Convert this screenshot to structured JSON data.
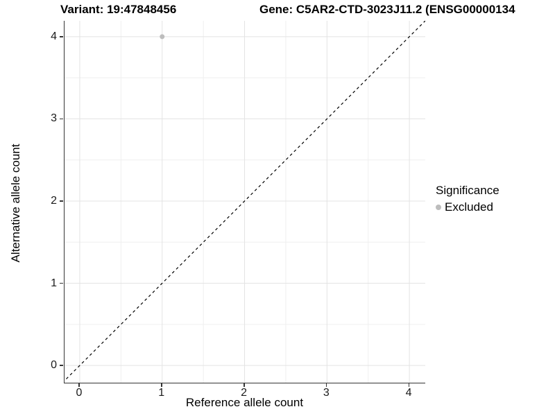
{
  "chart_data": {
    "type": "scatter",
    "title_left": "Variant: 19:47848456",
    "title_right": "Gene: C5AR2-CTD-3023J11.2 (ENSG00000134",
    "xlabel": "Reference allele count",
    "ylabel": "Alternative allele count",
    "xlim": [
      -0.185,
      4.193
    ],
    "ylim": [
      -0.21,
      4.193
    ],
    "x_ticks": [
      0,
      1,
      2,
      3,
      4
    ],
    "y_ticks": [
      0,
      1,
      2,
      3,
      4
    ],
    "x_minor": [
      0.5,
      1.5,
      2.5,
      3.5
    ],
    "y_minor": [
      0.5,
      1.5,
      2.5,
      3.5
    ],
    "grid": true,
    "identity_line": {
      "style": "dashed",
      "equation": "y = x",
      "color": "#000000"
    },
    "series": [
      {
        "name": "Excluded",
        "color": "#bdbdbd",
        "points": [
          {
            "x": 1,
            "y": 4
          }
        ]
      }
    ],
    "legend": {
      "title": "Significance",
      "position": "right",
      "items": [
        {
          "label": "Excluded",
          "color": "#bdbdbd"
        }
      ]
    },
    "colors": {
      "background": "#ffffff",
      "axis_line": "#333333",
      "grid_major": "#e3e3e3",
      "grid_minor": "#efefef",
      "tick_label": "#1a1a1a",
      "title_text": "#000000"
    }
  }
}
